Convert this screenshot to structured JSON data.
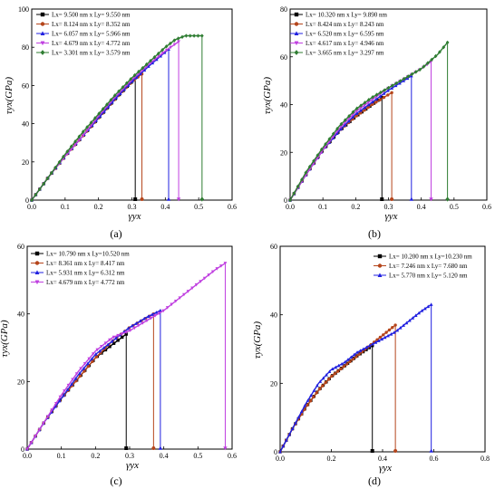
{
  "chart_data": [
    {
      "type": "line",
      "caption": "(a)",
      "xlabel": "γyx",
      "ylabel": "τyx(GPa)",
      "xlim": [
        0,
        0.6
      ],
      "ylim": [
        0,
        100
      ],
      "xticks": [
        "0.0",
        "0.1",
        "0.2",
        "0.3",
        "0.4",
        "0.5",
        "0.6"
      ],
      "yticks": [
        "0",
        "20",
        "40",
        "60",
        "80",
        "100"
      ],
      "legend_position": "top-left",
      "series": [
        {
          "name": "Lx= 9.500 nm x Ly= 9.550 nm",
          "color": "#000000",
          "marker": "square",
          "fracture_x": 0.31,
          "points": [
            [
              0,
              0
            ],
            [
              0.05,
              12
            ],
            [
              0.1,
              23
            ],
            [
              0.15,
              33
            ],
            [
              0.2,
              43
            ],
            [
              0.25,
              53
            ],
            [
              0.3,
              62
            ],
            [
              0.31,
              64
            ]
          ]
        },
        {
          "name": "Lx= 8.124 nm x Ly= 8.352 nm",
          "color": "#b5451b",
          "marker": "circle",
          "fracture_x": 0.33,
          "points": [
            [
              0,
              0
            ],
            [
              0.05,
              12
            ],
            [
              0.1,
              23
            ],
            [
              0.15,
              33
            ],
            [
              0.2,
              43
            ],
            [
              0.25,
              53
            ],
            [
              0.3,
              62
            ],
            [
              0.33,
              66
            ]
          ]
        },
        {
          "name": "Lx= 6.057 nm x Ly= 5.966 nm",
          "color": "#2020e0",
          "marker": "triangle-up",
          "fracture_x": 0.41,
          "points": [
            [
              0,
              0
            ],
            [
              0.05,
              12
            ],
            [
              0.1,
              23
            ],
            [
              0.15,
              33
            ],
            [
              0.2,
              43
            ],
            [
              0.25,
              53
            ],
            [
              0.3,
              62
            ],
            [
              0.35,
              70
            ],
            [
              0.41,
              79
            ]
          ]
        },
        {
          "name": "Lx= 4.679 nm x Ly= 4.772 nm",
          "color": "#c040e0",
          "marker": "triangle-down",
          "fracture_x": 0.44,
          "points": [
            [
              0,
              0
            ],
            [
              0.05,
              12
            ],
            [
              0.1,
              23
            ],
            [
              0.15,
              33
            ],
            [
              0.2,
              44
            ],
            [
              0.25,
              54
            ],
            [
              0.3,
              63
            ],
            [
              0.35,
              71
            ],
            [
              0.4,
              78
            ],
            [
              0.44,
              83
            ]
          ]
        },
        {
          "name": "Lx= 3.301 nm x Ly= 3.579 nm",
          "color": "#2f7d32",
          "marker": "diamond",
          "fracture_x": 0.51,
          "points": [
            [
              0,
              0
            ],
            [
              0.05,
              12
            ],
            [
              0.1,
              24
            ],
            [
              0.15,
              35
            ],
            [
              0.2,
              45
            ],
            [
              0.25,
              55
            ],
            [
              0.3,
              64
            ],
            [
              0.35,
              72
            ],
            [
              0.4,
              80
            ],
            [
              0.43,
              84
            ],
            [
              0.46,
              86
            ],
            [
              0.5,
              86
            ],
            [
              0.51,
              86
            ]
          ]
        }
      ]
    },
    {
      "type": "line",
      "caption": "(b)",
      "xlabel": "γyx",
      "ylabel": "τyx(GPa)",
      "xlim": [
        0,
        0.6
      ],
      "ylim": [
        0,
        80
      ],
      "xticks": [
        "0.0",
        "0.1",
        "0.2",
        "0.3",
        "0.4",
        "0.5",
        "0.6"
      ],
      "yticks": [
        "0",
        "20",
        "40",
        "60",
        "80"
      ],
      "legend_position": "top-right",
      "series": [
        {
          "name": "Lx= 10.320 nm x Ly= 9.890 nm",
          "color": "#000000",
          "marker": "square",
          "fracture_x": 0.28,
          "points": [
            [
              0,
              0
            ],
            [
              0.05,
              11
            ],
            [
              0.1,
              21
            ],
            [
              0.15,
              29
            ],
            [
              0.2,
              35
            ],
            [
              0.25,
              40
            ],
            [
              0.28,
              43
            ]
          ]
        },
        {
          "name": "Lx= 8.424 nm x Ly= 8.243 nm",
          "color": "#b5451b",
          "marker": "circle",
          "fracture_x": 0.31,
          "points": [
            [
              0,
              0
            ],
            [
              0.05,
              11
            ],
            [
              0.1,
              21
            ],
            [
              0.15,
              29
            ],
            [
              0.2,
              35
            ],
            [
              0.25,
              40
            ],
            [
              0.31,
              45
            ]
          ]
        },
        {
          "name": "Lx= 6.520 nm x Ly= 6.595 nm",
          "color": "#2020e0",
          "marker": "triangle-up",
          "fracture_x": 0.37,
          "points": [
            [
              0,
              0
            ],
            [
              0.05,
              11
            ],
            [
              0.1,
              21
            ],
            [
              0.15,
              29
            ],
            [
              0.2,
              36
            ],
            [
              0.25,
              41
            ],
            [
              0.3,
              46
            ],
            [
              0.37,
              52
            ]
          ]
        },
        {
          "name": "Lx= 4.617 nm x Ly= 4.946 nm",
          "color": "#c040e0",
          "marker": "triangle-down",
          "fracture_x": 0.43,
          "points": [
            [
              0,
              0
            ],
            [
              0.05,
              11
            ],
            [
              0.1,
              21
            ],
            [
              0.15,
              30
            ],
            [
              0.2,
              37
            ],
            [
              0.25,
              42
            ],
            [
              0.3,
              47
            ],
            [
              0.35,
              51
            ],
            [
              0.4,
              55
            ],
            [
              0.43,
              58
            ]
          ]
        },
        {
          "name": "Lx= 3.665 nm x Ly= 3.297 nm",
          "color": "#2f7d32",
          "marker": "diamond",
          "fracture_x": 0.48,
          "points": [
            [
              0,
              0
            ],
            [
              0.05,
              12
            ],
            [
              0.1,
              22
            ],
            [
              0.15,
              31
            ],
            [
              0.2,
              38
            ],
            [
              0.25,
              43
            ],
            [
              0.3,
              47
            ],
            [
              0.35,
              51
            ],
            [
              0.4,
              55
            ],
            [
              0.45,
              61
            ],
            [
              0.48,
              66
            ]
          ]
        }
      ]
    },
    {
      "type": "line",
      "caption": "(c)",
      "xlabel": "γyx",
      "ylabel": "τyx(GPa)",
      "xlim": [
        0,
        0.6
      ],
      "ylim": [
        0,
        60
      ],
      "xticks": [
        "0.0",
        "0.1",
        "0.2",
        "0.3",
        "0.4",
        "0.5",
        "0.6"
      ],
      "yticks": [
        "0",
        "20",
        "40",
        "60"
      ],
      "legend_position": "top-left",
      "series": [
        {
          "name": "Lx= 10.790 nm x Ly=10.520 nm",
          "color": "#000000",
          "marker": "square",
          "fracture_x": 0.29,
          "points": [
            [
              0,
              0
            ],
            [
              0.05,
              8
            ],
            [
              0.1,
              15
            ],
            [
              0.15,
              21
            ],
            [
              0.2,
              27
            ],
            [
              0.25,
              31
            ],
            [
              0.29,
              34
            ]
          ]
        },
        {
          "name": "Lx= 8.361 nm x Ly= 8.417 nm",
          "color": "#b5451b",
          "marker": "circle",
          "fracture_x": 0.37,
          "points": [
            [
              0,
              0
            ],
            [
              0.05,
              8
            ],
            [
              0.1,
              15
            ],
            [
              0.15,
              21
            ],
            [
              0.2,
              27
            ],
            [
              0.25,
              32
            ],
            [
              0.3,
              36
            ],
            [
              0.37,
              40
            ]
          ]
        },
        {
          "name": "Lx= 5.931 nm x Ly= 6.312 nm",
          "color": "#2020e0",
          "marker": "triangle-up",
          "fracture_x": 0.39,
          "points": [
            [
              0,
              0
            ],
            [
              0.05,
              8
            ],
            [
              0.1,
              15
            ],
            [
              0.15,
              22
            ],
            [
              0.2,
              28
            ],
            [
              0.25,
              32
            ],
            [
              0.3,
              36
            ],
            [
              0.35,
              39
            ],
            [
              0.39,
              41
            ]
          ]
        },
        {
          "name": "Lx= 4.679 nm x Ly= 4.772 nm",
          "color": "#c040e0",
          "marker": "triangle-down",
          "fracture_x": 0.58,
          "points": [
            [
              0,
              0
            ],
            [
              0.05,
              8
            ],
            [
              0.1,
              16
            ],
            [
              0.15,
              23
            ],
            [
              0.2,
              29
            ],
            [
              0.25,
              33
            ],
            [
              0.3,
              35
            ],
            [
              0.35,
              38
            ],
            [
              0.4,
              41
            ],
            [
              0.45,
              45
            ],
            [
              0.5,
              49
            ],
            [
              0.55,
              53
            ],
            [
              0.58,
              55
            ]
          ]
        }
      ]
    },
    {
      "type": "line",
      "caption": "(d)",
      "xlabel": "γyx",
      "ylabel": "τyx(GPa)",
      "xlim": [
        0,
        0.8
      ],
      "ylim": [
        0,
        60
      ],
      "xticks": [
        "0.0",
        "0.2",
        "0.4",
        "0.6",
        "0.8"
      ],
      "yticks": [
        "0",
        "20",
        "40",
        "60"
      ],
      "legend_position": "top-left",
      "series": [
        {
          "name": "Lx= 10.200 nm x Ly=10.230 nm",
          "color": "#000000",
          "marker": "square",
          "fracture_x": 0.36,
          "points": [
            [
              0,
              0
            ],
            [
              0.05,
              7
            ],
            [
              0.1,
              13
            ],
            [
              0.15,
              18
            ],
            [
              0.2,
              22
            ],
            [
              0.25,
              25
            ],
            [
              0.3,
              28
            ],
            [
              0.36,
              31
            ]
          ]
        },
        {
          "name": "Lx= 7.246 nm x Ly= 7.680 nm",
          "color": "#b5451b",
          "marker": "circle",
          "fracture_x": 0.45,
          "points": [
            [
              0,
              0
            ],
            [
              0.05,
              7
            ],
            [
              0.1,
              13
            ],
            [
              0.15,
              18
            ],
            [
              0.2,
              22
            ],
            [
              0.25,
              25
            ],
            [
              0.3,
              28
            ],
            [
              0.35,
              31
            ],
            [
              0.4,
              34
            ],
            [
              0.45,
              37
            ]
          ]
        },
        {
          "name": "Lx= 5.770 nm x Ly= 5.120 nm",
          "color": "#2020e0",
          "marker": "triangle-up",
          "fracture_x": 0.59,
          "points": [
            [
              0,
              0
            ],
            [
              0.05,
              7
            ],
            [
              0.1,
              14
            ],
            [
              0.15,
              20
            ],
            [
              0.2,
              24
            ],
            [
              0.25,
              26
            ],
            [
              0.3,
              29
            ],
            [
              0.35,
              31
            ],
            [
              0.4,
              33
            ],
            [
              0.45,
              35
            ],
            [
              0.5,
              38
            ],
            [
              0.55,
              41
            ],
            [
              0.59,
              43
            ]
          ]
        }
      ]
    }
  ]
}
